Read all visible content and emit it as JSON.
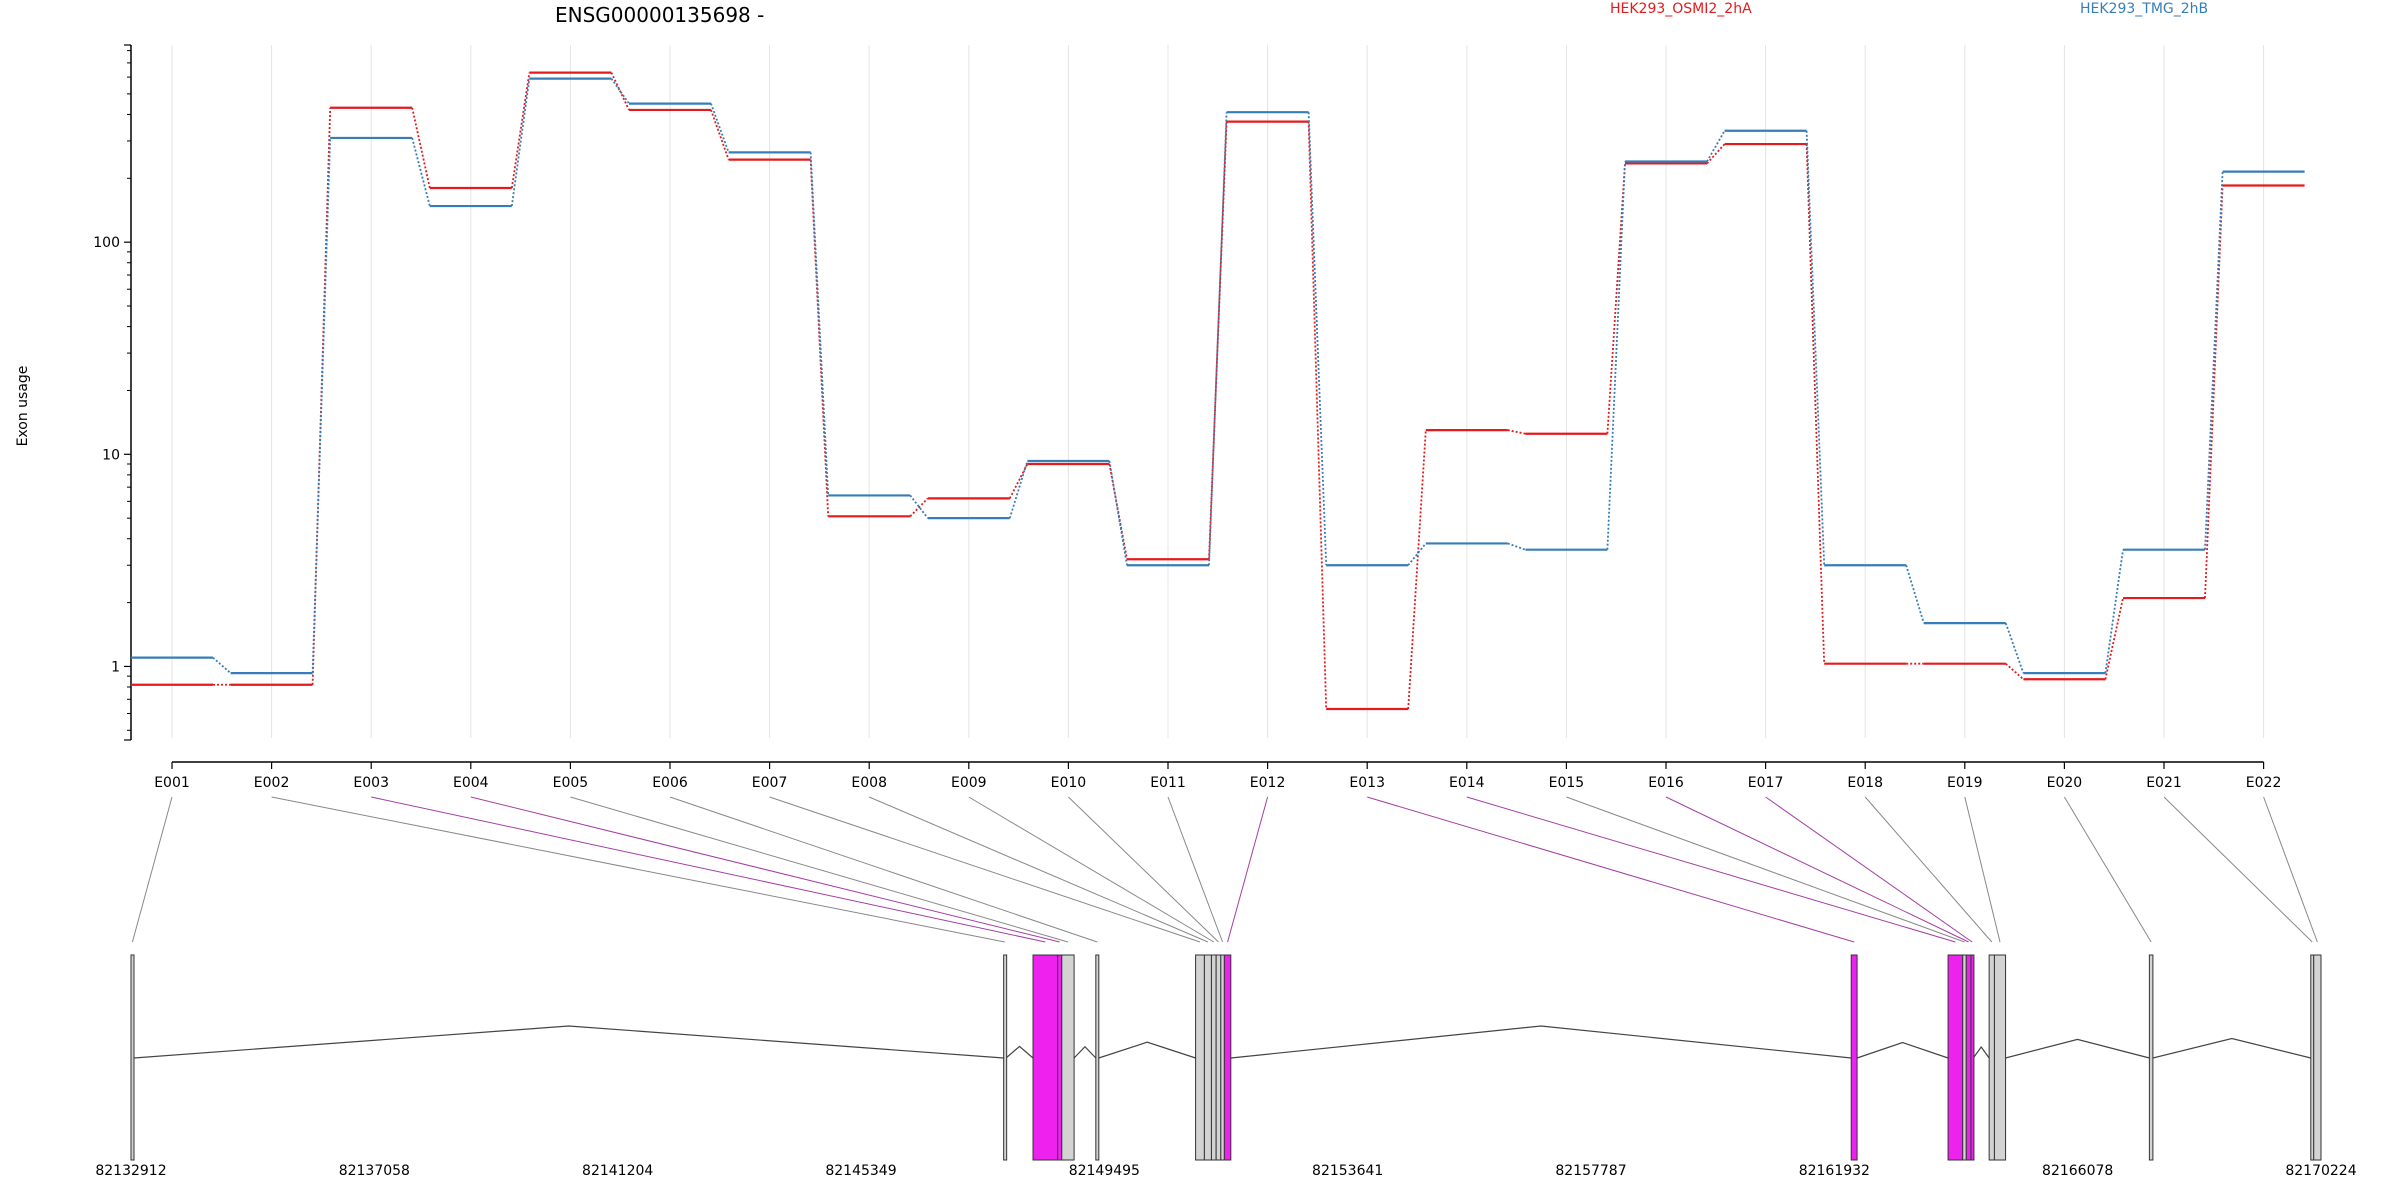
{
  "chart_data": {
    "type": "line",
    "title": "ENSG00000135698 -",
    "ylabel": "Exon usage",
    "y_scale": "log",
    "yticks": [
      1,
      10,
      100
    ],
    "ylim": [
      0.45,
      850
    ],
    "grid": "vertical",
    "legend_placement": "top-right",
    "categories": [
      "E001",
      "E002",
      "E003",
      "E004",
      "E005",
      "E006",
      "E007",
      "E008",
      "E009",
      "E010",
      "E011",
      "E012",
      "E013",
      "E014",
      "E015",
      "E016",
      "E017",
      "E018",
      "E019",
      "E020",
      "E021",
      "E022"
    ],
    "series": [
      {
        "name": "HEK293_OSMI2_2hA",
        "color": "#e41a1c",
        "values": [
          0.82,
          0.82,
          430,
          180,
          630,
          420,
          245,
          5.1,
          6.2,
          9.0,
          3.2,
          370,
          0.63,
          13,
          12.5,
          235,
          290,
          1.03,
          1.03,
          0.87,
          2.1,
          185
        ]
      },
      {
        "name": "HEK293_TMG_2hB",
        "color": "#377eb8",
        "values": [
          1.1,
          0.93,
          310,
          148,
          590,
          450,
          265,
          6.4,
          5.0,
          9.3,
          3.0,
          410,
          3.0,
          3.8,
          3.55,
          240,
          335,
          3.0,
          1.6,
          0.93,
          3.55,
          215
        ]
      }
    ],
    "gene_model": {
      "coordinate_range": [
        82132912,
        82170224
      ],
      "coordinate_labels": [
        "82132912",
        "82137058",
        "82141204",
        "82145349",
        "82149495",
        "82153641",
        "82157787",
        "82161932",
        "82166078",
        "82170224"
      ],
      "exons": [
        {
          "id": "E001",
          "start": 82132912,
          "end": 82132960,
          "highlight": false
        },
        {
          "id": "E002",
          "start": 82147780,
          "end": 82147820,
          "highlight": false
        },
        {
          "id": "E003",
          "start": 82148280,
          "end": 82148700,
          "highlight": true
        },
        {
          "id": "E004",
          "start": 82148700,
          "end": 82148770,
          "highlight": true
        },
        {
          "id": "E005",
          "start": 82148770,
          "end": 82148980,
          "highlight": false
        },
        {
          "id": "E006",
          "start": 82149350,
          "end": 82149400,
          "highlight": false
        },
        {
          "id": "E007",
          "start": 82151050,
          "end": 82151200,
          "highlight": false
        },
        {
          "id": "E008",
          "start": 82151200,
          "end": 82151320,
          "highlight": false
        },
        {
          "id": "E009",
          "start": 82151320,
          "end": 82151400,
          "highlight": false
        },
        {
          "id": "E010",
          "start": 82151400,
          "end": 82151480,
          "highlight": false
        },
        {
          "id": "E011",
          "start": 82151480,
          "end": 82151540,
          "highlight": false
        },
        {
          "id": "E012",
          "start": 82151540,
          "end": 82151650,
          "highlight": true
        },
        {
          "id": "E013",
          "start": 82162220,
          "end": 82162320,
          "highlight": true
        },
        {
          "id": "E014",
          "start": 82163870,
          "end": 82164120,
          "highlight": true
        },
        {
          "id": "E015",
          "start": 82164120,
          "end": 82164180,
          "highlight": false
        },
        {
          "id": "E016",
          "start": 82164180,
          "end": 82164260,
          "highlight": true
        },
        {
          "id": "E017",
          "start": 82164260,
          "end": 82164300,
          "highlight": true
        },
        {
          "id": "E018",
          "start": 82164570,
          "end": 82164660,
          "highlight": false
        },
        {
          "id": "E019",
          "start": 82164660,
          "end": 82164850,
          "highlight": false
        },
        {
          "id": "E020",
          "start": 82167300,
          "end": 82167360,
          "highlight": false
        },
        {
          "id": "E021",
          "start": 82170050,
          "end": 82170100,
          "highlight": false
        },
        {
          "id": "E022",
          "start": 82170100,
          "end": 82170224,
          "highlight": false
        }
      ],
      "highlight_color": "#ee22ee",
      "exon_color": "#d3d3d3"
    }
  }
}
